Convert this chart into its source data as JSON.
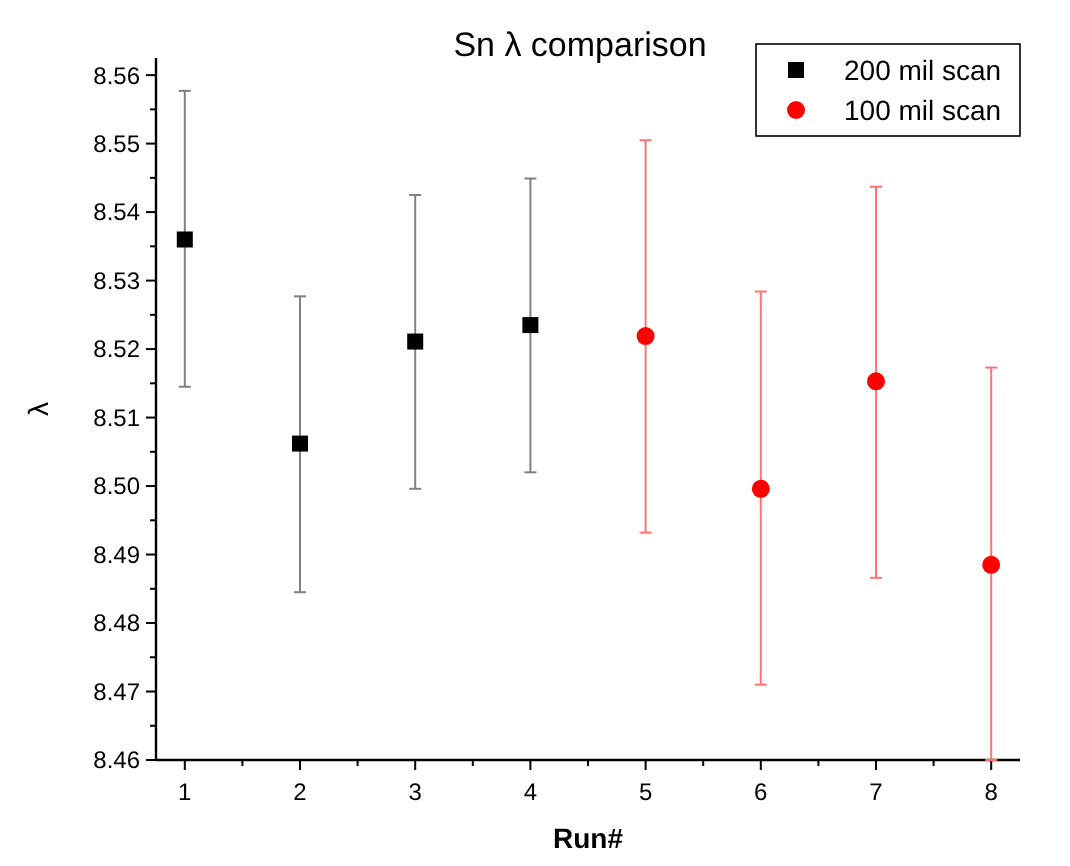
{
  "chart_data": {
    "type": "scatter",
    "title": "Sn λ comparison",
    "xlabel": "Run#",
    "ylabel": "λ",
    "xlim": [
      0.75,
      8.25
    ],
    "xticks": [
      1,
      2,
      3,
      4,
      5,
      6,
      7,
      8
    ],
    "ylim": [
      8.46,
      8.5625
    ],
    "yticks": [
      8.46,
      8.47,
      8.48,
      8.49,
      {
        "value": 8.5,
        "label": "8.50"
      },
      8.51,
      8.52,
      8.53,
      8.54,
      8.55,
      8.56
    ],
    "legend": "top right",
    "grid": false,
    "series": [
      {
        "name": "200 mil scan",
        "color": "#000000",
        "marker": "square",
        "x": [
          1,
          2,
          3,
          4
        ],
        "values": [
          8.536,
          8.5062,
          8.5211,
          8.5235
        ],
        "errors": [
          [
            8.5145,
            8.5577
          ],
          [
            8.4845,
            8.5277
          ],
          [
            8.4996,
            8.5425
          ],
          [
            8.502,
            8.5449
          ]
        ]
      },
      {
        "name": "100 mil scan",
        "color": "#ff0000",
        "marker": "circle",
        "x": [
          5,
          6,
          7,
          8
        ],
        "values": [
          8.5219,
          8.4996,
          8.5153,
          8.4885
        ],
        "errors": [
          [
            8.4932,
            8.5505
          ],
          [
            8.471,
            8.5284
          ],
          [
            8.4866,
            8.5437
          ],
          [
            8.46,
            8.5173
          ]
        ]
      }
    ]
  }
}
